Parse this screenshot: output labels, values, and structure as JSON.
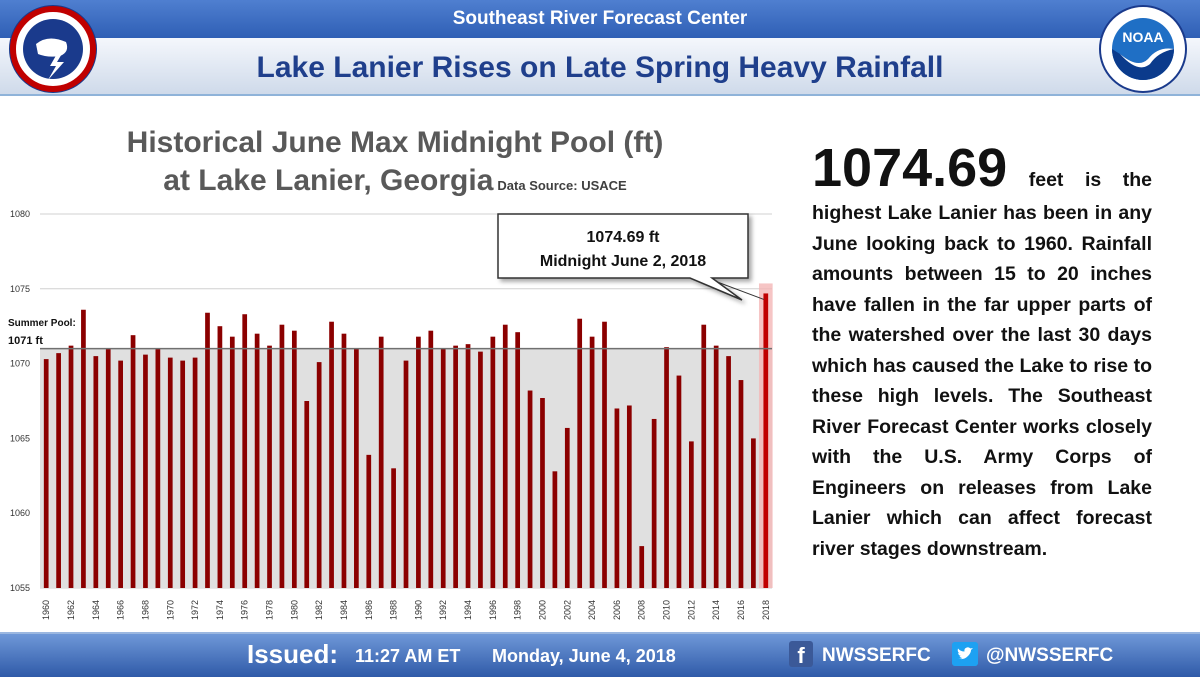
{
  "header": {
    "top_title": "Southeast River Forecast Center",
    "main_title": "Lake Lanier Rises on Late Spring Heavy Rainfall",
    "logo_left": "NATIONAL WEATHER SERVICE • U.S. DEPARTMENT OF COMMERCE",
    "logo_right": "NOAA"
  },
  "chart_title_line1": "Historical June Max Midnight Pool (ft)",
  "chart_title_line2": "at Lake Lanier, Georgia",
  "data_source": "Data Source: USACE",
  "callout": {
    "line1": "1074.69 ft",
    "line2": "Midnight June 2, 2018"
  },
  "summer_pool": {
    "label1": "Summer Pool:",
    "label2": "1071 ft",
    "value": 1071
  },
  "text_panel": {
    "big_number": "1074.69",
    "body": "feet is the highest Lake Lanier has been in any June looking back to 1960. Rainfall amounts between 15 to 20 inches have fallen in the far upper parts of the watershed over the last 30 days which has caused the Lake to rise to these high levels.  The Southeast River Forecast Center works closely with the U.S. Army Corps of Engineers on releases from Lake Lanier which can affect forecast river stages downstream."
  },
  "footer": {
    "issued_label": "Issued:",
    "time": "11:27 AM  ET",
    "date": "Monday, June 4, 2018",
    "facebook": "NWSSERFC",
    "twitter": "@NWSSERFC"
  },
  "colors": {
    "bar": "#8b0000",
    "highlight_bar": "#c00000",
    "title_blue": "#1f3f8c",
    "band_blue": "#2f5fb5"
  },
  "chart_data": {
    "type": "bar",
    "title": "Historical June Max Midnight Pool (ft) at Lake Lanier, Georgia",
    "xlabel": "",
    "ylabel": "",
    "ylim": [
      1055,
      1080
    ],
    "yticks": [
      1055,
      1060,
      1065,
      1070,
      1075,
      1080
    ],
    "xtick_labels": [
      "1960",
      "1962",
      "1964",
      "1966",
      "1968",
      "1970",
      "1972",
      "1974",
      "1976",
      "1978",
      "1980",
      "1982",
      "1984",
      "1986",
      "1988",
      "1990",
      "1992",
      "1994",
      "1996",
      "1998",
      "2000",
      "2002",
      "2004",
      "2006",
      "2008",
      "2010",
      "2012",
      "2014",
      "2016",
      "2018"
    ],
    "categories": [
      "1960",
      "1961",
      "1962",
      "1963",
      "1964",
      "1965",
      "1966",
      "1967",
      "1968",
      "1969",
      "1970",
      "1971",
      "1972",
      "1973",
      "1974",
      "1975",
      "1976",
      "1977",
      "1978",
      "1979",
      "1980",
      "1981",
      "1982",
      "1983",
      "1984",
      "1985",
      "1986",
      "1987",
      "1988",
      "1989",
      "1990",
      "1991",
      "1992",
      "1993",
      "1994",
      "1995",
      "1996",
      "1997",
      "1998",
      "1999",
      "2000",
      "2001",
      "2002",
      "2003",
      "2004",
      "2005",
      "2006",
      "2007",
      "2008",
      "2009",
      "2010",
      "2011",
      "2012",
      "2013",
      "2014",
      "2015",
      "2016",
      "2017",
      "2018"
    ],
    "values": [
      1070.3,
      1070.7,
      1071.2,
      1073.6,
      1070.5,
      1071.0,
      1070.2,
      1071.9,
      1070.6,
      1071.0,
      1070.4,
      1070.2,
      1070.4,
      1073.4,
      1072.5,
      1071.8,
      1073.3,
      1072.0,
      1071.2,
      1072.6,
      1072.2,
      1067.5,
      1070.1,
      1072.8,
      1072.0,
      1071.0,
      1063.9,
      1071.8,
      1063.0,
      1070.2,
      1071.8,
      1072.2,
      1071.0,
      1071.2,
      1071.3,
      1070.8,
      1071.8,
      1072.6,
      1072.1,
      1068.2,
      1067.7,
      1062.8,
      1065.7,
      1073.0,
      1071.8,
      1072.8,
      1067.0,
      1067.2,
      1057.8,
      1066.3,
      1071.1,
      1069.2,
      1064.8,
      1072.6,
      1071.2,
      1070.5,
      1068.9,
      1065.0,
      1074.69
    ],
    "reference_line": 1071,
    "highlight_index": 58,
    "grid": true
  }
}
